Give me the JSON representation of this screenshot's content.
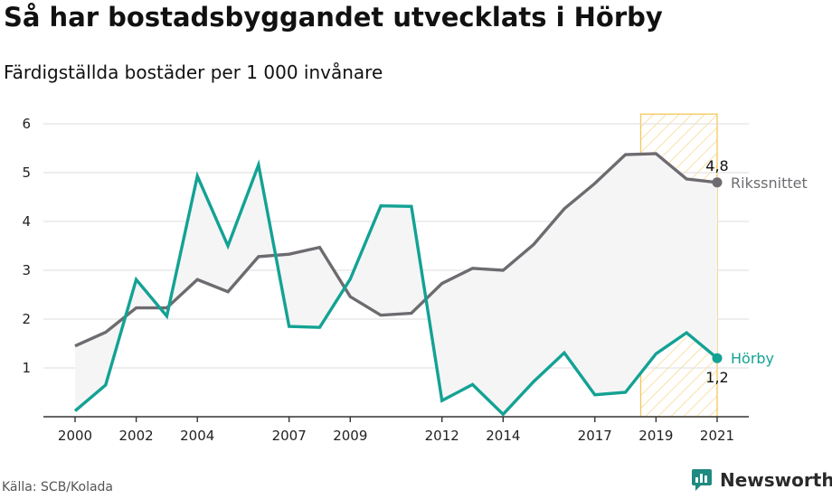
{
  "title": "Så har bostadsbyggandet utvecklats i Hörby",
  "subtitle": "Färdigställda bostäder per 1 000 invånare",
  "source": "Källa: SCB/Kolada",
  "brand": {
    "name": "Newsworthy",
    "icon": "newsworthy-logo-icon",
    "color": "#1f8a80"
  },
  "chart_data": {
    "type": "line",
    "x": [
      2000,
      2001,
      2002,
      2003,
      2004,
      2005,
      2006,
      2007,
      2008,
      2009,
      2010,
      2011,
      2012,
      2013,
      2014,
      2015,
      2016,
      2017,
      2018,
      2019,
      2020,
      2021
    ],
    "x_tick_labels": [
      "2000",
      "2002",
      "2004",
      "2007",
      "2009",
      "2012",
      "2014",
      "2017",
      "2019",
      "2021"
    ],
    "y_ticks": [
      1,
      2,
      3,
      4,
      5,
      6
    ],
    "ylim": [
      0,
      6.2
    ],
    "xlim": [
      2000,
      2021
    ],
    "grid": true,
    "series": [
      {
        "name": "Rikssnittet",
        "color": "#6e6b70",
        "values": [
          1.45,
          1.73,
          2.23,
          2.23,
          2.81,
          2.56,
          3.28,
          3.33,
          3.47,
          2.46,
          2.08,
          2.12,
          2.73,
          3.04,
          3.0,
          3.53,
          4.26,
          4.78,
          5.37,
          5.39,
          4.87,
          4.8
        ],
        "end_value_label": "4,8"
      },
      {
        "name": "Hörby",
        "color": "#13a294",
        "values": [
          0.12,
          0.65,
          2.81,
          2.06,
          4.93,
          3.5,
          5.16,
          1.85,
          1.83,
          2.82,
          4.32,
          4.31,
          0.33,
          0.66,
          0.05,
          0.72,
          1.31,
          0.45,
          0.5,
          1.29,
          1.72,
          1.2
        ],
        "end_value_label": "1,2"
      }
    ],
    "between_fill_color": "#f5f5f5",
    "highlight_range": {
      "from": 2018.5,
      "to": 2021,
      "color": "#f3c75c"
    }
  }
}
